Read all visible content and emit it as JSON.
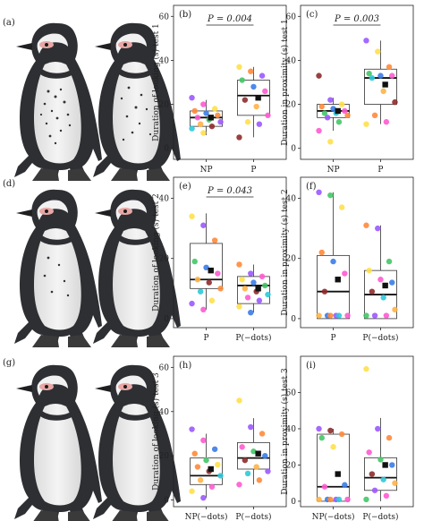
{
  "figure": {
    "row_labels": [
      "(a)",
      "(d)",
      "(g)"
    ]
  },
  "chart_data": [
    {
      "panel": "(b)",
      "type": "box-dot",
      "ylabel": "Duration of looking (s) test 1",
      "yticks": [
        0,
        20,
        40,
        60
      ],
      "ylim": [
        -5,
        65
      ],
      "categories": [
        "NP",
        "P"
      ],
      "pvalue": "P = 0.004",
      "groups": [
        {
          "q1": 10,
          "median": 14,
          "q3": 17,
          "wlo": 6,
          "whi": 22,
          "mean": 14,
          "points": [
            {
              "v": 23,
              "c": "#9b59ff"
            },
            {
              "v": 20,
              "c": "#ff5ad0"
            },
            {
              "v": 18,
              "c": "#ffe04a"
            },
            {
              "v": 17,
              "c": "#ff8a3a"
            },
            {
              "v": 16,
              "c": "#3a7ce8"
            },
            {
              "v": 15,
              "c": "#ff8a3a"
            },
            {
              "v": 14,
              "c": "#ff5ad0"
            },
            {
              "v": 13,
              "c": "#44c767"
            },
            {
              "v": 12,
              "c": "#9b59ff"
            },
            {
              "v": 11,
              "c": "#ffb347"
            },
            {
              "v": 10,
              "c": "#8e2b2b"
            },
            {
              "v": 9,
              "c": "#2fc9d9"
            },
            {
              "v": 7,
              "c": "#ffe04a"
            }
          ]
        },
        {
          "q1": 15,
          "median": 24,
          "q3": 31,
          "wlo": 5,
          "whi": 37,
          "mean": 23,
          "points": [
            {
              "v": 37,
              "c": "#ffe04a"
            },
            {
              "v": 35,
              "c": "#ff8a3a"
            },
            {
              "v": 33,
              "c": "#9b59ff"
            },
            {
              "v": 31,
              "c": "#44c767"
            },
            {
              "v": 28,
              "c": "#3a7ce8"
            },
            {
              "v": 26,
              "c": "#ff5ad0"
            },
            {
              "v": 22,
              "c": "#8e2b2b"
            },
            {
              "v": 19,
              "c": "#ffb347"
            },
            {
              "v": 15,
              "c": "#ff5ad0"
            },
            {
              "v": 12,
              "c": "#ffe04a"
            },
            {
              "v": 11,
              "c": "#9b59ff"
            },
            {
              "v": 5,
              "c": "#8e2b2b"
            }
          ]
        }
      ]
    },
    {
      "panel": "(c)",
      "type": "box-dot",
      "ylabel": "Duration in proximity (s) test 1",
      "yticks": [
        0,
        20,
        40,
        60
      ],
      "ylim": [
        -5,
        65
      ],
      "categories": [
        "NP",
        "P"
      ],
      "pvalue": "P = 0.003",
      "groups": [
        {
          "q1": 14,
          "median": 17,
          "q3": 20,
          "wlo": 8,
          "whi": 23,
          "mean": 17,
          "points": [
            {
              "v": 33,
              "c": "#8e2b2b"
            },
            {
              "v": 22,
              "c": "#9b59ff"
            },
            {
              "v": 20,
              "c": "#ffe04a"
            },
            {
              "v": 19,
              "c": "#ff8a3a"
            },
            {
              "v": 18,
              "c": "#3a7ce8"
            },
            {
              "v": 17,
              "c": "#ff5ad0"
            },
            {
              "v": 16,
              "c": "#44c767"
            },
            {
              "v": 16,
              "c": "#2fc9d9"
            },
            {
              "v": 15,
              "c": "#ff8a3a"
            },
            {
              "v": 14,
              "c": "#9b59ff"
            },
            {
              "v": 12,
              "c": "#44c767"
            },
            {
              "v": 8,
              "c": "#ff5ad0"
            },
            {
              "v": 3,
              "c": "#ffe04a"
            }
          ]
        },
        {
          "q1": 20,
          "median": 32,
          "q3": 36,
          "wlo": 11,
          "whi": 49,
          "mean": 29,
          "points": [
            {
              "v": 49,
              "c": "#9b59ff"
            },
            {
              "v": 44,
              "c": "#ffe04a"
            },
            {
              "v": 37,
              "c": "#ff8a3a"
            },
            {
              "v": 34,
              "c": "#44c767"
            },
            {
              "v": 33,
              "c": "#3a7ce8"
            },
            {
              "v": 33,
              "c": "#ff5ad0"
            },
            {
              "v": 32,
              "c": "#2fc9d9"
            },
            {
              "v": 26,
              "c": "#ffb347"
            },
            {
              "v": 21,
              "c": "#8e2b2b"
            },
            {
              "v": 15,
              "c": "#ff8a3a"
            },
            {
              "v": 12,
              "c": "#ff5ad0"
            },
            {
              "v": 11,
              "c": "#ffe04a"
            }
          ]
        }
      ]
    },
    {
      "panel": "(e)",
      "type": "box-dot",
      "ylabel": "Duration of looking (s) test 2",
      "yticks": [
        0,
        20,
        40
      ],
      "ylim": [
        -3,
        47
      ],
      "categories": [
        "P",
        "P(−dots)"
      ],
      "pvalue": "P = 0.043",
      "groups": [
        {
          "q1": 10,
          "median": 13,
          "q3": 25,
          "wlo": 3,
          "whi": 35,
          "mean": 16,
          "points": [
            {
              "v": 34,
              "c": "#ffe04a"
            },
            {
              "v": 31,
              "c": "#9b59ff"
            },
            {
              "v": 26,
              "c": "#ff8a3a"
            },
            {
              "v": 19,
              "c": "#44c767"
            },
            {
              "v": 17,
              "c": "#3a7ce8"
            },
            {
              "v": 15,
              "c": "#ff5ad0"
            },
            {
              "v": 13,
              "c": "#ffb347"
            },
            {
              "v": 12,
              "c": "#8e2b2b"
            },
            {
              "v": 10,
              "c": "#ff8a3a"
            },
            {
              "v": 9,
              "c": "#2fc9d9"
            },
            {
              "v": 6,
              "c": "#ffe04a"
            },
            {
              "v": 5,
              "c": "#9b59ff"
            },
            {
              "v": 3,
              "c": "#ff5ad0"
            }
          ]
        },
        {
          "q1": 5,
          "median": 11,
          "q3": 14,
          "wlo": 2,
          "whi": 18,
          "mean": 10,
          "points": [
            {
              "v": 18,
              "c": "#ff8a3a"
            },
            {
              "v": 15,
              "c": "#9b59ff"
            },
            {
              "v": 14,
              "c": "#ff5ad0"
            },
            {
              "v": 13,
              "c": "#ffe04a"
            },
            {
              "v": 12,
              "c": "#3a7ce8"
            },
            {
              "v": 11,
              "c": "#44c767"
            },
            {
              "v": 10,
              "c": "#ffb347"
            },
            {
              "v": 9,
              "c": "#8e2b2b"
            },
            {
              "v": 8,
              "c": "#2fc9d9"
            },
            {
              "v": 7,
              "c": "#ff5ad0"
            },
            {
              "v": 6,
              "c": "#9b59ff"
            },
            {
              "v": 4,
              "c": "#ffe04a"
            },
            {
              "v": 2,
              "c": "#3a7ce8"
            }
          ]
        }
      ]
    },
    {
      "panel": "(f)",
      "type": "box-dot",
      "ylabel": "Duration in proximity (s) test 2",
      "yticks": [
        0,
        20,
        40
      ],
      "ylim": [
        -3,
        47
      ],
      "categories": [
        "P",
        "P(−dots)"
      ],
      "pvalue": "",
      "groups": [
        {
          "q1": 0,
          "median": 9,
          "q3": 21,
          "wlo": 0,
          "whi": 42,
          "mean": 13,
          "points": [
            {
              "v": 42,
              "c": "#9b59ff"
            },
            {
              "v": 41,
              "c": "#44c767"
            },
            {
              "v": 37,
              "c": "#ffe04a"
            },
            {
              "v": 22,
              "c": "#ff8a3a"
            },
            {
              "v": 19,
              "c": "#3a7ce8"
            },
            {
              "v": 15,
              "c": "#ff5ad0"
            },
            {
              "v": 9,
              "c": "#8e2b2b"
            },
            {
              "v": 1,
              "c": "#9b59ff"
            },
            {
              "v": 1,
              "c": "#ff5ad0"
            },
            {
              "v": 1,
              "c": "#3a7ce8"
            },
            {
              "v": 1,
              "c": "#2fc9d9"
            },
            {
              "v": 1,
              "c": "#ffb347"
            },
            {
              "v": 1,
              "c": "#ff8a3a"
            }
          ]
        },
        {
          "q1": 0,
          "median": 8,
          "q3": 16,
          "wlo": 0,
          "whi": 31,
          "mean": 11,
          "points": [
            {
              "v": 31,
              "c": "#ff8a3a"
            },
            {
              "v": 30,
              "c": "#9b59ff"
            },
            {
              "v": 19,
              "c": "#44c767"
            },
            {
              "v": 16,
              "c": "#ffe04a"
            },
            {
              "v": 13,
              "c": "#ff5ad0"
            },
            {
              "v": 12,
              "c": "#3a7ce8"
            },
            {
              "v": 9,
              "c": "#8e2b2b"
            },
            {
              "v": 7,
              "c": "#2fc9d9"
            },
            {
              "v": 3,
              "c": "#ffb347"
            },
            {
              "v": 1,
              "c": "#9b59ff"
            },
            {
              "v": 1,
              "c": "#ff5ad0"
            },
            {
              "v": 1,
              "c": "#44c767"
            }
          ]
        }
      ]
    },
    {
      "panel": "(h)",
      "type": "box-dot",
      "ylabel": "Duration of looking (s) test 3",
      "yticks": [
        0,
        20,
        40,
        60
      ],
      "ylim": [
        -3,
        65
      ],
      "categories": [
        "NP(−dots)",
        "P(−dots)"
      ],
      "pvalue": "",
      "groups": [
        {
          "q1": 7,
          "median": 11,
          "q3": 19,
          "wlo": 1,
          "whi": 30,
          "mean": 14,
          "points": [
            {
              "v": 32,
              "c": "#9b59ff"
            },
            {
              "v": 27,
              "c": "#ff5ad0"
            },
            {
              "v": 23,
              "c": "#3a7ce8"
            },
            {
              "v": 21,
              "c": "#ff8a3a"
            },
            {
              "v": 18,
              "c": "#44c767"
            },
            {
              "v": 16,
              "c": "#ffe04a"
            },
            {
              "v": 15,
              "c": "#ff8a3a"
            },
            {
              "v": 13,
              "c": "#8e2b2b"
            },
            {
              "v": 11,
              "c": "#2fc9d9"
            },
            {
              "v": 9,
              "c": "#ffb347"
            },
            {
              "v": 6,
              "c": "#ff5ad0"
            },
            {
              "v": 4,
              "c": "#ffe04a"
            },
            {
              "v": 1,
              "c": "#9b59ff"
            }
          ]
        },
        {
          "q1": 14,
          "median": 19,
          "q3": 26,
          "wlo": 7,
          "whi": 37,
          "mean": 21,
          "points": [
            {
              "v": 45,
              "c": "#ffe04a"
            },
            {
              "v": 33,
              "c": "#9b59ff"
            },
            {
              "v": 30,
              "c": "#ff8a3a"
            },
            {
              "v": 24,
              "c": "#ff5ad0"
            },
            {
              "v": 22,
              "c": "#44c767"
            },
            {
              "v": 20,
              "c": "#3a7ce8"
            },
            {
              "v": 18,
              "c": "#8e2b2b"
            },
            {
              "v": 15,
              "c": "#ffb347"
            },
            {
              "v": 13,
              "c": "#9b59ff"
            },
            {
              "v": 12,
              "c": "#2fc9d9"
            },
            {
              "v": 9,
              "c": "#ff8a3a"
            },
            {
              "v": 7,
              "c": "#ff5ad0"
            }
          ]
        }
      ]
    },
    {
      "panel": "(i)",
      "type": "box-dot",
      "ylabel": "Duration in proximity (s) test 3",
      "yticks": [
        0,
        20,
        40,
        60
      ],
      "ylim": [
        -3,
        80
      ],
      "categories": [
        "NP(−dots)",
        "P(−dots)"
      ],
      "pvalue": "",
      "groups": [
        {
          "q1": 0,
          "median": 8,
          "q3": 37,
          "wlo": 0,
          "whi": 40,
          "mean": 15,
          "points": [
            {
              "v": 40,
              "c": "#9b59ff"
            },
            {
              "v": 39,
              "c": "#8e2b2b"
            },
            {
              "v": 37,
              "c": "#ff8a3a"
            },
            {
              "v": 35,
              "c": "#44c767"
            },
            {
              "v": 30,
              "c": "#ffe04a"
            },
            {
              "v": 9,
              "c": "#3a7ce8"
            },
            {
              "v": 8,
              "c": "#ff5ad0"
            },
            {
              "v": 1,
              "c": "#9b59ff"
            },
            {
              "v": 1,
              "c": "#ff5ad0"
            },
            {
              "v": 1,
              "c": "#3a7ce8"
            },
            {
              "v": 1,
              "c": "#2fc9d9"
            },
            {
              "v": 1,
              "c": "#ffb347"
            },
            {
              "v": 1,
              "c": "#ff8a3a"
            }
          ]
        },
        {
          "q1": 6,
          "median": 13,
          "q3": 24,
          "wlo": 0,
          "whi": 46,
          "mean": 20,
          "points": [
            {
              "v": 73,
              "c": "#ffe04a"
            },
            {
              "v": 40,
              "c": "#9b59ff"
            },
            {
              "v": 35,
              "c": "#ff8a3a"
            },
            {
              "v": 27,
              "c": "#ff5ad0"
            },
            {
              "v": 23,
              "c": "#44c767"
            },
            {
              "v": 20,
              "c": "#3a7ce8"
            },
            {
              "v": 15,
              "c": "#8e2b2b"
            },
            {
              "v": 12,
              "c": "#2fc9d9"
            },
            {
              "v": 10,
              "c": "#ffb347"
            },
            {
              "v": 6,
              "c": "#9b59ff"
            },
            {
              "v": 3,
              "c": "#ff5ad0"
            },
            {
              "v": 1,
              "c": "#44c767"
            }
          ]
        }
      ]
    }
  ]
}
